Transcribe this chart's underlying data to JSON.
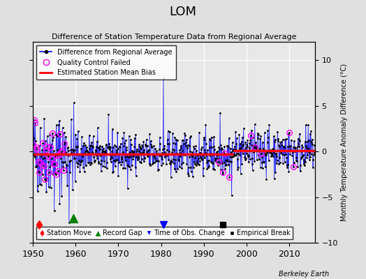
{
  "title": "LOM",
  "subtitle": "Difference of Station Temperature Data from Regional Average",
  "ylabel_right": "Monthly Temperature Anomaly Difference (°C)",
  "xlim": [
    1950,
    2016
  ],
  "ylim": [
    -10,
    12
  ],
  "yticks": [
    -10,
    -5,
    0,
    5,
    10
  ],
  "xticks": [
    1950,
    1960,
    1970,
    1980,
    1990,
    2000,
    2010
  ],
  "bg_color": "#e0e0e0",
  "plot_bg_color": "#e8e8e8",
  "grid_color": "#ffffff",
  "seed": 42,
  "n_points": 780,
  "start_year": 1950.0,
  "end_year": 2015.9,
  "mean_bias_y1": -0.3,
  "mean_bias_y2": 0.1,
  "mean_bias_break": 1997.0,
  "spike_1980_x": 1980.5,
  "spike_1980_y": 8.0,
  "spike_1994_x": 1993.8,
  "spike_1994_y": 4.2,
  "spike_neg1_x": 1955.0,
  "spike_neg1_y": -6.5,
  "spike_neg2_x": 1958.5,
  "spike_neg2_y": -7.8,
  "station_move_x": 1951.5,
  "record_gap_x": 1959.5,
  "time_obs_change_x": 1980.5,
  "empirical_break_x": 1994.5,
  "footer": "Berkeley Earth"
}
